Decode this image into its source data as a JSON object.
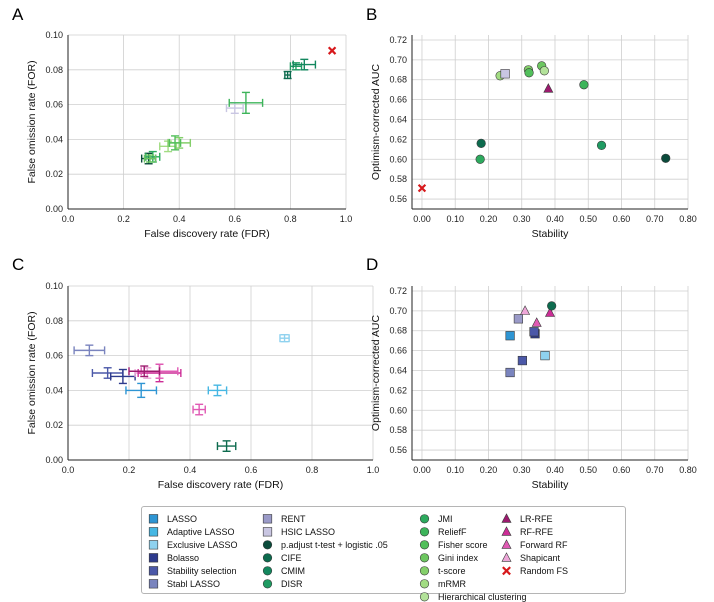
{
  "chart_data": [
    {
      "panel": "A",
      "type": "scatter",
      "xlabel": "False discovery rate (FDR)",
      "ylabel": "False omission rate (FOR)",
      "xlim": [
        0,
        1
      ],
      "ylim": [
        0,
        0.1
      ],
      "xticks": [
        "0.0",
        "0.2",
        "0.4",
        "0.6",
        "0.8",
        "1.0"
      ],
      "yticks": [
        "0.00",
        "0.02",
        "0.04",
        "0.06",
        "0.08",
        "0.10"
      ],
      "points": [
        {
          "series": "p.adjust t-test + logistic .05",
          "x": 0.29,
          "y": 0.029,
          "xerr": 0.025,
          "yerr": 0.003
        },
        {
          "series": "JMI",
          "x": 0.305,
          "y": 0.03,
          "xerr": 0.025,
          "yerr": 0.003
        },
        {
          "series": "Gini index",
          "x": 0.295,
          "y": 0.029,
          "xerr": 0.02,
          "yerr": 0.002
        },
        {
          "series": "mRMR",
          "x": 0.36,
          "y": 0.036,
          "xerr": 0.03,
          "yerr": 0.003
        },
        {
          "series": "t-score",
          "x": 0.4,
          "y": 0.038,
          "xerr": 0.04,
          "yerr": 0.003
        },
        {
          "series": "Fisher score",
          "x": 0.385,
          "y": 0.038,
          "xerr": 0.02,
          "yerr": 0.004
        },
        {
          "series": "HSIC LASSO",
          "x": 0.6,
          "y": 0.058,
          "xerr": 0.03,
          "yerr": 0.003
        },
        {
          "series": "ReliefF",
          "x": 0.64,
          "y": 0.061,
          "xerr": 0.06,
          "yerr": 0.006
        },
        {
          "series": "CIFE",
          "x": 0.79,
          "y": 0.077,
          "xerr": 0.01,
          "yerr": 0.002
        },
        {
          "series": "DISR",
          "x": 0.82,
          "y": 0.082,
          "xerr": 0.02,
          "yerr": 0.002
        },
        {
          "series": "CMIM",
          "x": 0.85,
          "y": 0.083,
          "xerr": 0.04,
          "yerr": 0.003
        },
        {
          "series": "Random FS",
          "x": 0.95,
          "y": 0.091,
          "xerr": 0,
          "yerr": 0
        }
      ]
    },
    {
      "panel": "B",
      "type": "scatter",
      "xlabel": "Stability",
      "ylabel": "Optimism-corrected AUC",
      "xlim": [
        -0.03,
        0.8
      ],
      "ylim": [
        0.55,
        0.725
      ],
      "xticks": [
        "0.00",
        "0.10",
        "0.20",
        "0.30",
        "0.40",
        "0.50",
        "0.60",
        "0.70",
        "0.80"
      ],
      "yticks": [
        "0.56",
        "0.58",
        "0.60",
        "0.62",
        "0.64",
        "0.66",
        "0.68",
        "0.70",
        "0.72"
      ],
      "points": [
        {
          "series": "Random FS",
          "x": 0.0,
          "y": 0.571
        },
        {
          "series": "JMI",
          "x": 0.175,
          "y": 0.6
        },
        {
          "series": "CIFE",
          "x": 0.178,
          "y": 0.616
        },
        {
          "series": "mRMR",
          "x": 0.235,
          "y": 0.684
        },
        {
          "series": "HSIC LASSO",
          "x": 0.25,
          "y": 0.686
        },
        {
          "series": "t-score",
          "x": 0.32,
          "y": 0.69
        },
        {
          "series": "Fisher score",
          "x": 0.322,
          "y": 0.687
        },
        {
          "series": "Gini index",
          "x": 0.36,
          "y": 0.694
        },
        {
          "series": "Hierarchical clustering",
          "x": 0.368,
          "y": 0.689
        },
        {
          "series": "LR-RFE",
          "x": 0.38,
          "y": 0.671
        },
        {
          "series": "ReliefF",
          "x": 0.487,
          "y": 0.675
        },
        {
          "series": "DISR",
          "x": 0.54,
          "y": 0.614
        },
        {
          "series": "p.adjust t-test + logistic .05",
          "x": 0.733,
          "y": 0.601
        }
      ]
    },
    {
      "panel": "C",
      "type": "scatter",
      "xlabel": "False discovery rate (FDR)",
      "ylabel": "False omission rate (FOR)",
      "xlim": [
        0,
        1
      ],
      "ylim": [
        0,
        0.1
      ],
      "xticks": [
        "0.0",
        "0.2",
        "0.4",
        "0.6",
        "0.8",
        "1.0"
      ],
      "yticks": [
        "0.00",
        "0.02",
        "0.04",
        "0.06",
        "0.08",
        "0.10"
      ],
      "points": [
        {
          "series": "Stabl LASSO",
          "x": 0.07,
          "y": 0.063,
          "xerr": 0.05,
          "yerr": 0.003
        },
        {
          "series": "Stability selection",
          "x": 0.13,
          "y": 0.05,
          "xerr": 0.05,
          "yerr": 0.003
        },
        {
          "series": "Bolasso",
          "x": 0.18,
          "y": 0.048,
          "xerr": 0.04,
          "yerr": 0.004
        },
        {
          "series": "LASSO",
          "x": 0.24,
          "y": 0.04,
          "xerr": 0.05,
          "yerr": 0.004
        },
        {
          "series": "Shapicant",
          "x": 0.26,
          "y": 0.05,
          "xerr": 0.04,
          "yerr": 0.003
        },
        {
          "series": "RF-RFE",
          "x": 0.3,
          "y": 0.05,
          "xerr": 0.07,
          "yerr": 0.005
        },
        {
          "series": "Forward RF",
          "x": 0.3,
          "y": 0.051,
          "xerr": 0.06,
          "yerr": 0.004
        },
        {
          "series": "LR-RFE",
          "x": 0.25,
          "y": 0.051,
          "xerr": 0.05,
          "yerr": 0.003
        },
        {
          "series": "Forward RF",
          "x": 0.43,
          "y": 0.029,
          "xerr": 0.02,
          "yerr": 0.003
        },
        {
          "series": "Adaptive LASSO",
          "x": 0.49,
          "y": 0.04,
          "xerr": 0.03,
          "yerr": 0.003
        },
        {
          "series": "CIFE",
          "x": 0.52,
          "y": 0.008,
          "xerr": 0.03,
          "yerr": 0.003
        },
        {
          "series": "Exclusive LASSO",
          "x": 0.71,
          "y": 0.07,
          "xerr": 0.015,
          "yerr": 0.002
        }
      ]
    },
    {
      "panel": "D",
      "type": "scatter",
      "xlabel": "Stability",
      "ylabel": "Optimism-corrected AUC",
      "xlim": [
        -0.03,
        0.8
      ],
      "ylim": [
        0.55,
        0.725
      ],
      "xticks": [
        "0.00",
        "0.10",
        "0.20",
        "0.30",
        "0.40",
        "0.50",
        "0.60",
        "0.70",
        "0.80"
      ],
      "yticks": [
        "0.56",
        "0.58",
        "0.60",
        "0.62",
        "0.64",
        "0.66",
        "0.68",
        "0.70",
        "0.72"
      ],
      "points": [
        {
          "series": "Stabl LASSO",
          "x": 0.265,
          "y": 0.638
        },
        {
          "series": "LASSO",
          "x": 0.265,
          "y": 0.675
        },
        {
          "series": "RENT",
          "x": 0.29,
          "y": 0.692
        },
        {
          "series": "Stability selection",
          "x": 0.302,
          "y": 0.65
        },
        {
          "series": "Shapicant",
          "x": 0.31,
          "y": 0.7
        },
        {
          "series": "Bolasso",
          "x": 0.34,
          "y": 0.677
        },
        {
          "series": "Stability selection",
          "x": 0.337,
          "y": 0.679
        },
        {
          "series": "Forward RF",
          "x": 0.345,
          "y": 0.688
        },
        {
          "series": "Exclusive LASSO",
          "x": 0.37,
          "y": 0.655
        },
        {
          "series": "RF-RFE",
          "x": 0.385,
          "y": 0.698
        },
        {
          "series": "CIFE",
          "x": 0.39,
          "y": 0.705
        }
      ]
    }
  ],
  "panels": {
    "A": "A",
    "B": "B",
    "C": "C",
    "D": "D"
  },
  "legend": [
    {
      "label": "LASSO",
      "color": "#2e95d3",
      "shape": "square"
    },
    {
      "label": "Adaptive LASSO",
      "color": "#46b7e3",
      "shape": "square"
    },
    {
      "label": "Exclusive LASSO",
      "color": "#8fd2ef",
      "shape": "square"
    },
    {
      "label": "Bolasso",
      "color": "#2d3a8c",
      "shape": "square"
    },
    {
      "label": "Stability selection",
      "color": "#4b58a8",
      "shape": "square"
    },
    {
      "label": "Stabl LASSO",
      "color": "#7a84be",
      "shape": "square"
    },
    {
      "label": "RENT",
      "color": "#9a9ac8",
      "shape": "square"
    },
    {
      "label": "HSIC LASSO",
      "color": "#c9c6e2",
      "shape": "square"
    },
    {
      "label": "p.adjust t-test + logistic .05",
      "color": "#0b4b3b",
      "shape": "circle"
    },
    {
      "label": "CIFE",
      "color": "#0d6b4e",
      "shape": "circle"
    },
    {
      "label": "CMIM",
      "color": "#13875e",
      "shape": "circle"
    },
    {
      "label": "DISR",
      "color": "#1f9b62",
      "shape": "circle"
    },
    {
      "label": "JMI",
      "color": "#2daa5e",
      "shape": "circle"
    },
    {
      "label": "ReliefF",
      "color": "#3db45a",
      "shape": "circle"
    },
    {
      "label": "Fisher score",
      "color": "#52bf5b",
      "shape": "circle"
    },
    {
      "label": "Gini index",
      "color": "#6cc660",
      "shape": "circle"
    },
    {
      "label": "t-score",
      "color": "#84cf6a",
      "shape": "circle"
    },
    {
      "label": "mRMR",
      "color": "#a2dc83",
      "shape": "circle"
    },
    {
      "label": "Hierarchical clustering",
      "color": "#b3e29a",
      "shape": "circle"
    },
    {
      "label": "LR-RFE",
      "color": "#9c1a6e",
      "shape": "triangle"
    },
    {
      "label": "RF-RFE",
      "color": "#cc2d96",
      "shape": "triangle"
    },
    {
      "label": "Forward RF",
      "color": "#e05ab4",
      "shape": "triangle"
    },
    {
      "label": "Shapicant",
      "color": "#eda6d8",
      "shape": "triangle"
    },
    {
      "label": "Random FS",
      "color": "#d7191c",
      "shape": "cross"
    }
  ]
}
